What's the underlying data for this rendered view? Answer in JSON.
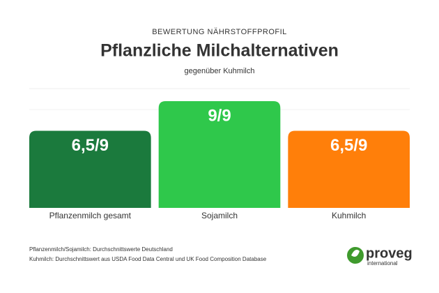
{
  "chart_data": {
    "type": "bar",
    "kicker": "BEWERTUNG NÄHRSTOFFPROFIL",
    "title": "Pflanzliche Milchalternativen",
    "subtitle": "gegenüber Kuhmilch",
    "categories": [
      "Pflanzenmilch gesamt",
      "Sojamilch",
      "Kuhmilch"
    ],
    "values": [
      6.5,
      9,
      6.5
    ],
    "value_labels": [
      "6,5/9",
      "9/9",
      "6,5/9"
    ],
    "colors": [
      "#1b7a3d",
      "#2fc84b",
      "#ff7f0a"
    ],
    "notes": [
      "Pflanzenmilch/Sojamilch: Durchschnittswerte Deutschland",
      "Kuhmilch: Durchschnittswert aus USDA Food Data Central und UK Food Composition Database"
    ]
  },
  "logo": {
    "name": "proveg",
    "tagline": "international"
  }
}
